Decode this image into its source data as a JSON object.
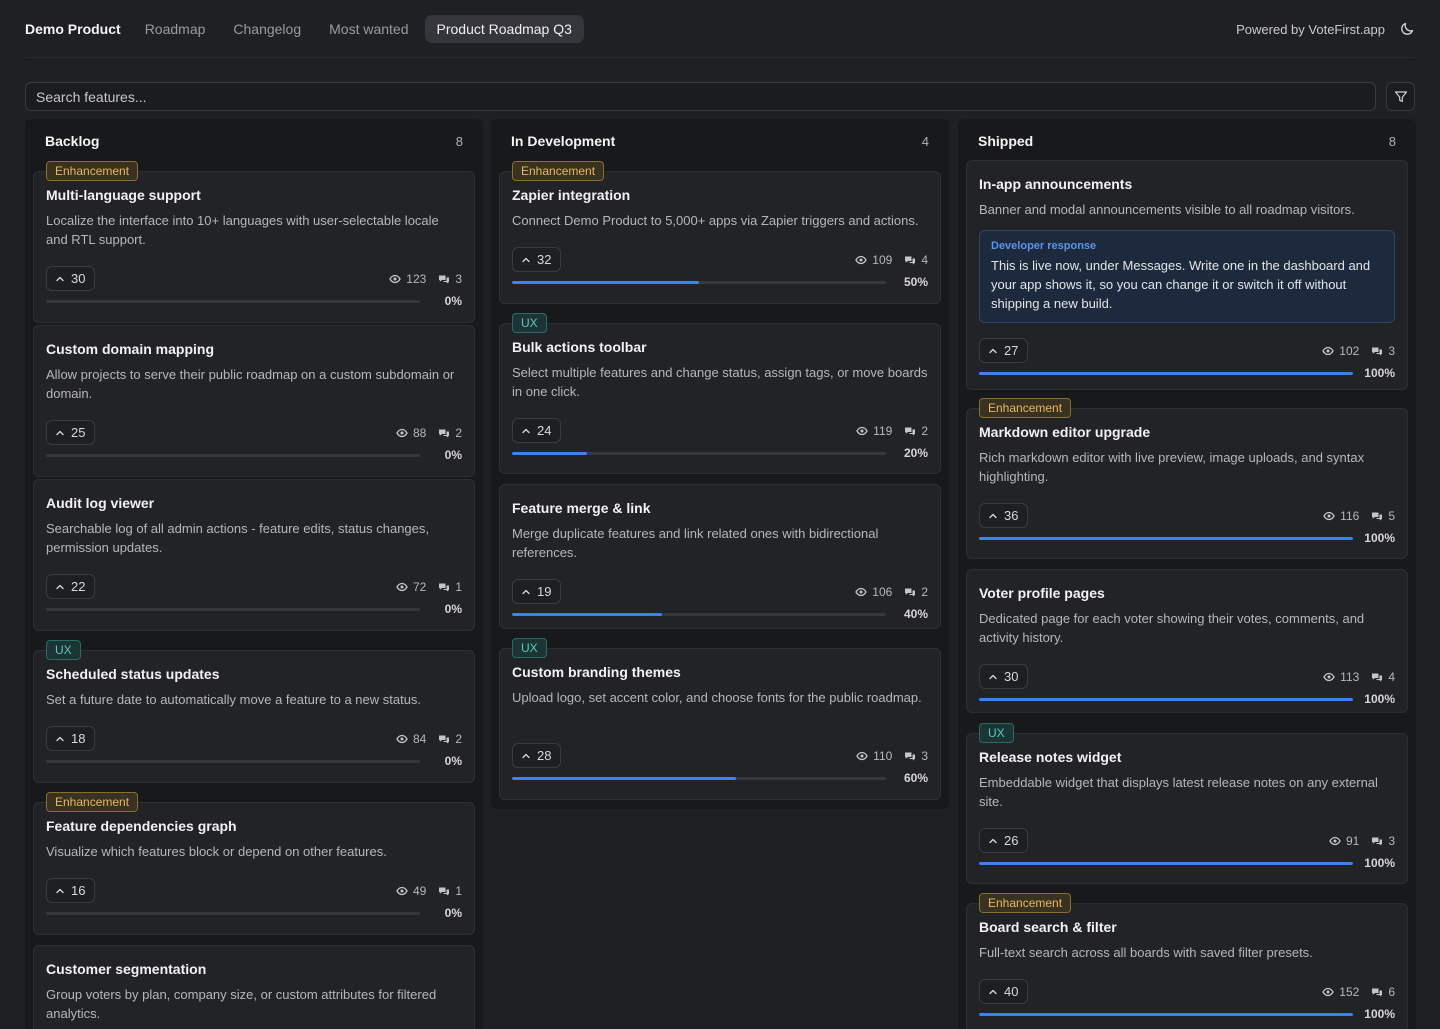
{
  "nav": {
    "brand": "Demo Product",
    "links": [
      "Roadmap",
      "Changelog",
      "Most wanted",
      "Product Roadmap Q3"
    ],
    "active_index": 3,
    "powered": "Powered by VoteFirst.app"
  },
  "search": {
    "placeholder": "Search features..."
  },
  "colors": {
    "accent": "#3b82f6",
    "enhancement": "#e6b860",
    "ux": "#5cc7c0"
  },
  "columns": [
    {
      "title": "Backlog",
      "count": "8",
      "cards": [
        {
          "tag": "Enhancement",
          "title": "Multi-language support",
          "desc": "Localize the interface into 10+ languages with user-selectable locale and RTL support.",
          "votes": "30",
          "views": "123",
          "comments": "3",
          "progress": 0,
          "pct": "0%"
        },
        {
          "tag": "",
          "title": "Custom domain mapping",
          "desc": "Allow projects to serve their public roadmap on a custom subdomain or domain.",
          "votes": "25",
          "views": "88",
          "comments": "2",
          "progress": 0,
          "pct": "0%"
        },
        {
          "tag": "",
          "title": "Audit log viewer",
          "desc": "Searchable log of all admin actions - feature edits, status changes, permission updates.",
          "votes": "22",
          "views": "72",
          "comments": "1",
          "progress": 0,
          "pct": "0%"
        },
        {
          "tag": "UX",
          "title": "Scheduled status updates",
          "desc": "Set a future date to automatically move a feature to a new status.",
          "votes": "18",
          "views": "84",
          "comments": "2",
          "progress": 0,
          "pct": "0%"
        },
        {
          "tag": "Enhancement",
          "title": "Feature dependencies graph",
          "desc": "Visualize which features block or depend on other features.",
          "votes": "16",
          "views": "49",
          "comments": "1",
          "progress": 0,
          "pct": "0%"
        },
        {
          "tag": "",
          "title": "Customer segmentation",
          "desc": "Group voters by plan, company size, or custom attributes for filtered analytics.",
          "votes": "",
          "views": "",
          "comments": "",
          "progress": 0,
          "pct": ""
        }
      ]
    },
    {
      "title": "In Development",
      "count": "4",
      "cards": [
        {
          "tag": "Enhancement",
          "title": "Zapier integration",
          "desc": "Connect Demo Product to 5,000+ apps via Zapier triggers and actions.",
          "votes": "32",
          "views": "109",
          "comments": "4",
          "progress": 0.5,
          "pct": "50%"
        },
        {
          "tag": "UX",
          "title": "Bulk actions toolbar",
          "desc": "Select multiple features and change status, assign tags, or move boards in one click.",
          "votes": "24",
          "views": "119",
          "comments": "2",
          "progress": 0.2,
          "pct": "20%"
        },
        {
          "tag": "",
          "title": "Feature merge & link",
          "desc": "Merge duplicate features and link related ones with bidirectional references.",
          "votes": "19",
          "views": "106",
          "comments": "2",
          "progress": 0.4,
          "pct": "40%"
        },
        {
          "tag": "UX",
          "title": "Custom branding themes",
          "desc": "Upload logo, set accent color, and choose fonts for the public roadmap.",
          "votes": "28",
          "views": "110",
          "comments": "3",
          "progress": 0.6,
          "pct": "60%"
        }
      ]
    },
    {
      "title": "Shipped",
      "count": "8",
      "cards": [
        {
          "tag": "",
          "title": "In-app announcements",
          "desc": "Banner and modal announcements visible to all roadmap visitors.",
          "dev_label": "Developer response",
          "dev_text": "This is live now, under Messages. Write one in the dashboard and your app shows it, so you can change it or switch it off without shipping a new build.",
          "votes": "27",
          "views": "102",
          "comments": "3",
          "progress": 1,
          "pct": "100%"
        },
        {
          "tag": "Enhancement",
          "title": "Markdown editor upgrade",
          "desc": "Rich markdown editor with live preview, image uploads, and syntax highlighting.",
          "votes": "36",
          "views": "116",
          "comments": "5",
          "progress": 1,
          "pct": "100%"
        },
        {
          "tag": "",
          "title": "Voter profile pages",
          "desc": "Dedicated page for each voter showing their votes, comments, and activity history.",
          "votes": "30",
          "views": "113",
          "comments": "4",
          "progress": 1,
          "pct": "100%"
        },
        {
          "tag": "UX",
          "title": "Release notes widget",
          "desc": "Embeddable widget that displays latest release notes on any external site.",
          "votes": "26",
          "views": "91",
          "comments": "3",
          "progress": 1,
          "pct": "100%"
        },
        {
          "tag": "Enhancement",
          "title": "Board search & filter",
          "desc": "Full-text search across all boards with saved filter presets.",
          "votes": "40",
          "views": "152",
          "comments": "6",
          "progress": 1,
          "pct": "100%"
        }
      ]
    }
  ]
}
